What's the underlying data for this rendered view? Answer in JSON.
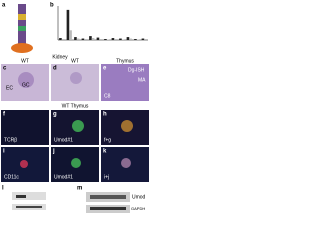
{
  "panel_letters": {
    "a": "a",
    "b": "b",
    "c": "c",
    "d": "d",
    "e": "e",
    "f": "f",
    "g": "g",
    "h": "h",
    "i": "i",
    "j": "j",
    "k": "k",
    "l": "l",
    "m": "m"
  },
  "headers": {
    "kidney": "Kidney",
    "wt1": "WT",
    "wt2": "WT",
    "thymus": "Thymus",
    "wt_thymus": "WT Thymus"
  },
  "panel_texts": {
    "c_gc": "GC",
    "c_ec": "EC",
    "e_ish": "Dg-ISH",
    "e_ma": "MA",
    "e_c": "C8",
    "f": "TCRβ",
    "g": "Umod#1",
    "h": "f+g",
    "i": "CD11c",
    "j": "Umod#1",
    "k": "i+j"
  },
  "blot_labels": {
    "umod": "Umod",
    "gapdh": "GAPDH"
  },
  "bar_chart": {
    "series": [
      {
        "color": "#222222",
        "values": [
          4,
          62,
          6,
          3,
          8,
          5,
          2,
          4,
          3,
          6,
          2,
          3
        ]
      },
      {
        "color": "#bbbbbb",
        "values": [
          2,
          20,
          3,
          2,
          4,
          2,
          1,
          2,
          1,
          3,
          1,
          2
        ]
      }
    ],
    "ylim": [
      0,
      70
    ]
  }
}
